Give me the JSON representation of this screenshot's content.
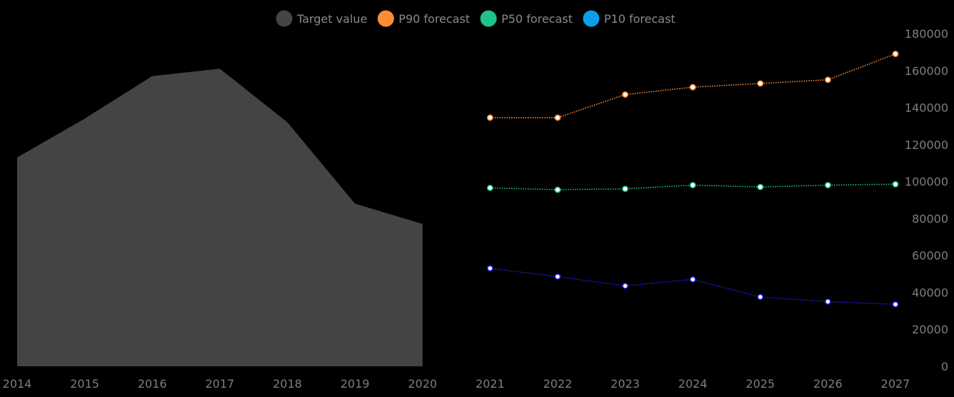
{
  "chart_data": {
    "type": "line",
    "title": "",
    "xlabel": "",
    "ylabel": "",
    "x": [
      2014,
      2015,
      2016,
      2017,
      2018,
      2019,
      2020,
      2021,
      2022,
      2023,
      2024,
      2025,
      2026,
      2027
    ],
    "x_tick_labels": [
      "2014",
      "2015",
      "2016",
      "2017",
      "2018",
      "2019",
      "2020",
      "2021",
      "2022",
      "2023",
      "2024",
      "2025",
      "2026",
      "2027"
    ],
    "y_tick_labels": [
      "0",
      "20000",
      "40000",
      "60000",
      "80000",
      "100000",
      "120000",
      "140000",
      "160000",
      "180000"
    ],
    "xlim": [
      2014,
      2027
    ],
    "ylim": [
      0,
      180000
    ],
    "y_axis_position": "right",
    "grid": false,
    "legend_position": "top-center",
    "series": [
      {
        "name": "Target value",
        "kind": "area",
        "color": "#444444",
        "x": [
          2014,
          2015,
          2016,
          2017,
          2018,
          2019,
          2020
        ],
        "values": [
          113000,
          134000,
          157000,
          161000,
          132000,
          88000,
          77000
        ]
      },
      {
        "name": "P90 forecast",
        "kind": "line",
        "color": "#ff8c33",
        "x": [
          2021,
          2022,
          2023,
          2024,
          2025,
          2026,
          2027
        ],
        "values": [
          134500,
          134500,
          147000,
          151000,
          153000,
          155000,
          169000
        ]
      },
      {
        "name": "P50 forecast",
        "kind": "line",
        "color": "#1ec28b",
        "x": [
          2021,
          2022,
          2023,
          2024,
          2025,
          2026,
          2027
        ],
        "values": [
          96500,
          95500,
          96000,
          98000,
          97000,
          98000,
          98500
        ]
      },
      {
        "name": "P10 forecast",
        "kind": "line",
        "color": "#1f1fe0",
        "x": [
          2021,
          2022,
          2023,
          2024,
          2025,
          2026,
          2027
        ],
        "values": [
          53000,
          48500,
          43500,
          47000,
          37500,
          35000,
          33500
        ]
      }
    ],
    "legend": [
      {
        "label": "Target value",
        "color": "#444444"
      },
      {
        "label": "P90 forecast",
        "color": "#ff8c33"
      },
      {
        "label": "P50 forecast",
        "color": "#1ec28b"
      },
      {
        "label": "P10 forecast",
        "color": "#0a9fe8"
      }
    ]
  }
}
